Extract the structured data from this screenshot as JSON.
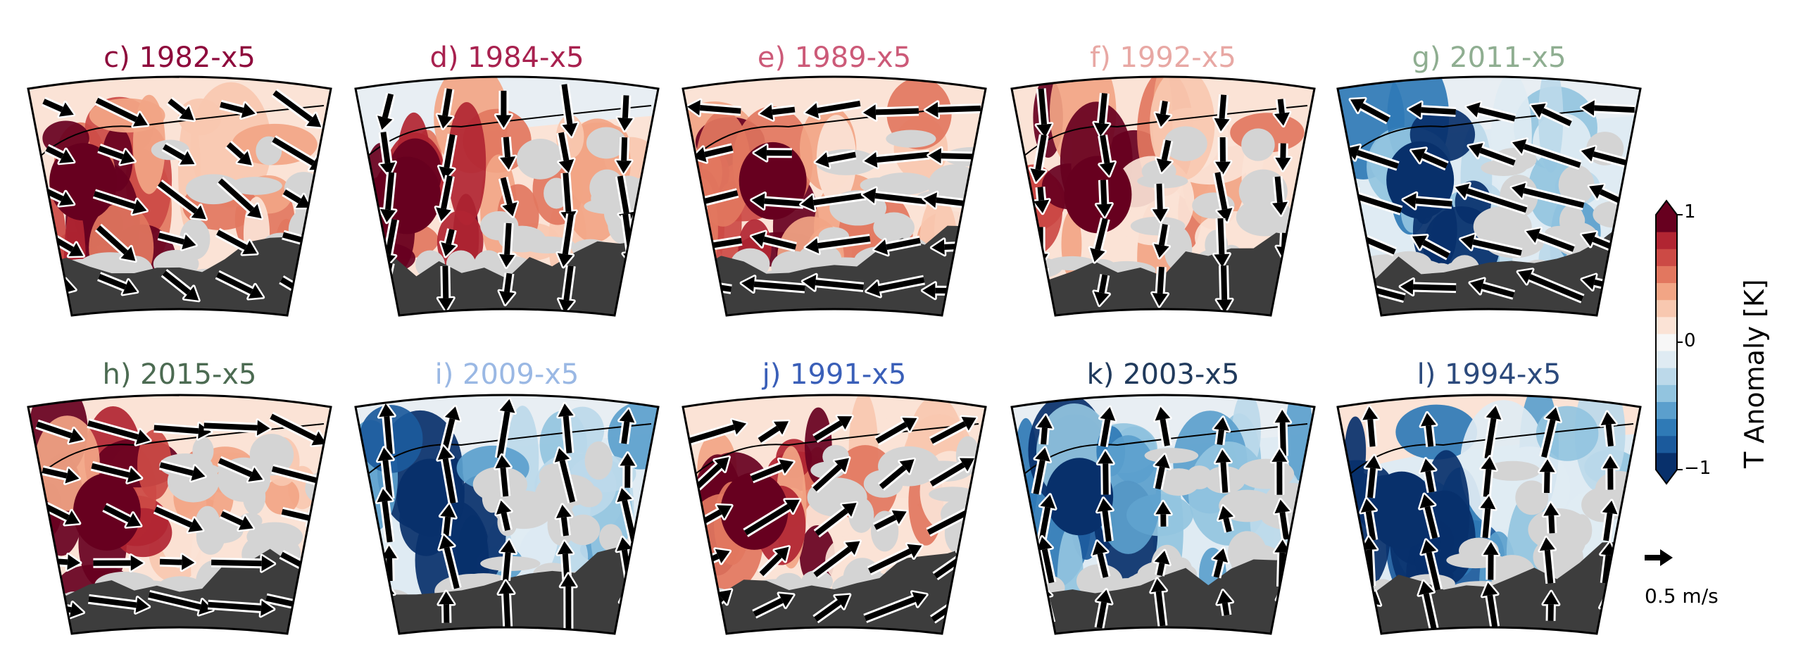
{
  "chart_data": {
    "type": "heatmap",
    "colorbar": {
      "label": "T Anomaly [K]",
      "ticks": [
        "1",
        "0",
        "−1"
      ],
      "range": [
        -1,
        1
      ],
      "extend": "both",
      "cmap": "RdBu_r",
      "colors": [
        "#08306b",
        "#1b5a9c",
        "#2f7ab6",
        "#5b9fcd",
        "#92c4df",
        "#bcd9ea",
        "#dfebf3",
        "#f7f7f7",
        "#fbe3d6",
        "#f8c8b0",
        "#f2a585",
        "#e2775f",
        "#cc4a45",
        "#b12532",
        "#67001f"
      ]
    },
    "quiver_key": {
      "label": "0.5 m/s",
      "value": 0.5,
      "units": "m/s"
    },
    "land_colors": {
      "light": "#d4d4d4",
      "dark": "#3d3d3d"
    },
    "panels": [
      {
        "id": "c",
        "title": "c) 1982-x5",
        "title_color": "#8e0a3c",
        "anomaly_sign": "warm",
        "wind": {
          "direction": "southeast",
          "strength": 0.45
        }
      },
      {
        "id": "d",
        "title": "d) 1984-x5",
        "title_color": "#a8214f",
        "anomaly_sign": "warm",
        "wind": {
          "direction": "south",
          "strength": 0.35
        }
      },
      {
        "id": "e",
        "title": "e) 1989-x5",
        "title_color": "#cc5a78",
        "anomaly_sign": "warm",
        "wind": {
          "direction": "northeast/west",
          "strength": 0.55
        }
      },
      {
        "id": "f",
        "title": "f) 1992-x5",
        "title_color": "#e8a8a4",
        "anomaly_sign": "warm",
        "wind": {
          "direction": "south",
          "strength": 0.3
        }
      },
      {
        "id": "g",
        "title": "g) 2011-x5",
        "title_color": "#8fae91",
        "anomaly_sign": "cool",
        "wind": {
          "direction": "west/northwest",
          "strength": 0.7
        }
      },
      {
        "id": "h",
        "title": "h) 2015-x5",
        "title_color": "#4c6b52",
        "anomaly_sign": "warm",
        "wind": {
          "direction": "southeast/east",
          "strength": 0.6
        }
      },
      {
        "id": "i",
        "title": "i) 2009-x5",
        "title_color": "#9ab8e4",
        "anomaly_sign": "cool",
        "wind": {
          "direction": "north",
          "strength": 0.45
        }
      },
      {
        "id": "j",
        "title": "j) 1991-x5",
        "title_color": "#3a5fb8",
        "anomaly_sign": "warm",
        "wind": {
          "direction": "northeast",
          "strength": 0.55
        }
      },
      {
        "id": "k",
        "title": "k) 2003-x5",
        "title_color": "#203a5c",
        "anomaly_sign": "cool",
        "wind": {
          "direction": "north",
          "strength": 0.25
        }
      },
      {
        "id": "l",
        "title": "l) 1994-x5",
        "title_color": "#2c4a7c",
        "anomaly_sign": "cool",
        "wind": {
          "direction": "north",
          "strength": 0.35
        }
      }
    ]
  }
}
